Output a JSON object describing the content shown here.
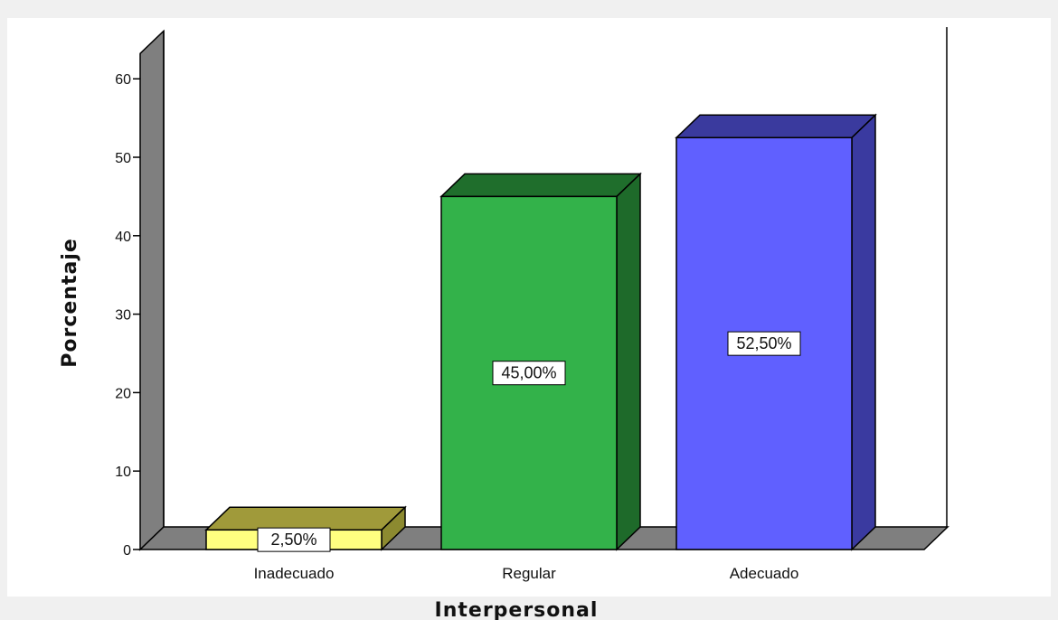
{
  "chart_data": {
    "type": "bar",
    "style": "3d",
    "title": "",
    "xlabel": "Interpersonal",
    "ylabel": "Porcentaje",
    "categories": [
      "Inadecuado",
      "Regular",
      "Adecuado"
    ],
    "values": [
      2.5,
      45.0,
      52.5
    ],
    "data_labels": [
      "2,50%",
      "45,00%",
      "52,50%"
    ],
    "ylim": [
      0,
      60
    ],
    "yticks": [
      0,
      10,
      20,
      30,
      40,
      50,
      60
    ],
    "ytick_labels": [
      "0",
      "10",
      "20",
      "30",
      "40",
      "50",
      "60"
    ],
    "grid": false,
    "legend": "none",
    "colors": {
      "bars": [
        {
          "front": "#ffff80",
          "top": "#a09a3a",
          "side": "#8c8a30"
        },
        {
          "front": "#33b24a",
          "top": "#1f6e2c",
          "side": "#1e6a2a"
        },
        {
          "front": "#6060ff",
          "top": "#3a3a9e",
          "side": "#3a3aa0"
        }
      ],
      "wall": "#7f7f7f",
      "floor": "#7f7f7f",
      "outer_background": "#f0f0f0",
      "plot_background": "#ffffff"
    }
  }
}
